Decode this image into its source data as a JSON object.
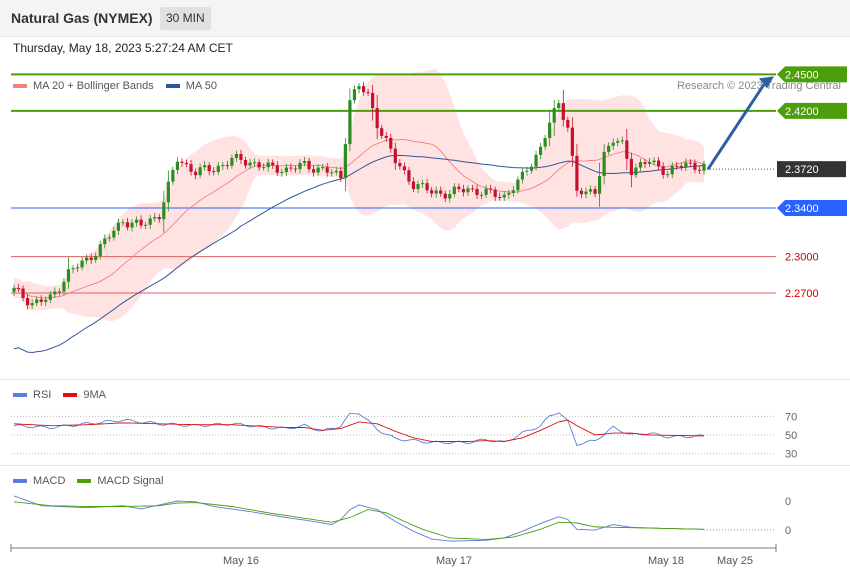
{
  "header": {
    "title": "Natural Gas (NYMEX)",
    "timeframe": "30 MIN"
  },
  "datetime": "Thursday, May 18, 2023 5:27:24 AM CET",
  "credit": "Research © 2023 Trading Central",
  "colors": {
    "bull": "#2e8b1f",
    "bear": "#c8102e",
    "bb_fill": "#ffd9d9",
    "ma20": "#f08080",
    "ma50": "#2f5597",
    "resistance": "#4d9e0b",
    "support_blue": "#2962ff",
    "support_red": "#e06060",
    "current": "#333333",
    "rsi": "#5b7fd6",
    "rsi_ma": "#e01010",
    "macd": "#5b7fd6",
    "macd_signal": "#4d9e0b",
    "arrow": "#2f5fa3"
  },
  "chart_data": [
    {
      "type": "candlestick",
      "title": "Natural Gas (NYMEX)",
      "legend": [
        {
          "name": "MA 20 + Bollinger Bands",
          "color": "#f08080"
        },
        {
          "name": "MA 50",
          "color": "#2f5597"
        }
      ],
      "ylim": [
        2.2,
        2.48
      ],
      "levels": [
        {
          "value": 2.45,
          "label": "2.4500",
          "kind": "resistance"
        },
        {
          "value": 2.42,
          "label": "2.4200",
          "kind": "resistance"
        },
        {
          "value": 2.372,
          "label": "2.3720",
          "kind": "current"
        },
        {
          "value": 2.34,
          "label": "2.3400",
          "kind": "support"
        },
        {
          "value": 2.3,
          "label": "2.3000",
          "kind": "support-minor"
        },
        {
          "value": 2.27,
          "label": "2.2700",
          "kind": "support-minor"
        }
      ],
      "forecast_arrow": {
        "from": 2.372,
        "to": 2.45
      },
      "x_ticks": [
        "May 16",
        "May 17",
        "May 18",
        "May 25"
      ],
      "anchors": [
        [
          0,
          2.272
        ],
        [
          4,
          2.262
        ],
        [
          8,
          2.265
        ],
        [
          12,
          2.287
        ],
        [
          16,
          2.297
        ],
        [
          20,
          2.312
        ],
        [
          24,
          2.33
        ],
        [
          28,
          2.325
        ],
        [
          32,
          2.335
        ],
        [
          36,
          2.38
        ],
        [
          40,
          2.37
        ],
        [
          44,
          2.372
        ],
        [
          48,
          2.38
        ],
        [
          52,
          2.378
        ],
        [
          56,
          2.373
        ],
        [
          60,
          2.372
        ],
        [
          64,
          2.375
        ],
        [
          68,
          2.372
        ],
        [
          72,
          2.365
        ],
        [
          74,
          2.43
        ],
        [
          76,
          2.44
        ],
        [
          78,
          2.432
        ],
        [
          80,
          2.41
        ],
        [
          82,
          2.395
        ],
        [
          84,
          2.378
        ],
        [
          88,
          2.36
        ],
        [
          92,
          2.353
        ],
        [
          96,
          2.352
        ],
        [
          100,
          2.356
        ],
        [
          104,
          2.352
        ],
        [
          108,
          2.35
        ],
        [
          112,
          2.365
        ],
        [
          116,
          2.39
        ],
        [
          118,
          2.41
        ],
        [
          120,
          2.425
        ],
        [
          122,
          2.408
        ],
        [
          124,
          2.355
        ],
        [
          126,
          2.35
        ],
        [
          128,
          2.355
        ],
        [
          130,
          2.385
        ],
        [
          132,
          2.395
        ],
        [
          134,
          2.392
        ],
        [
          136,
          2.372
        ],
        [
          140,
          2.378
        ],
        [
          144,
          2.37
        ],
        [
          148,
          2.376
        ],
        [
          152,
          2.374
        ]
      ]
    },
    {
      "type": "line",
      "title": "RSI",
      "series": [
        {
          "name": "RSI",
          "color": "#5b7fd6"
        },
        {
          "name": "9MA",
          "color": "#e01010"
        }
      ],
      "y_ticks": [
        70,
        50,
        30
      ],
      "rsi_anchors": [
        [
          0,
          60
        ],
        [
          8,
          58
        ],
        [
          16,
          62
        ],
        [
          24,
          66
        ],
        [
          32,
          62
        ],
        [
          40,
          60
        ],
        [
          48,
          62
        ],
        [
          56,
          58
        ],
        [
          60,
          57
        ],
        [
          64,
          60
        ],
        [
          68,
          54
        ],
        [
          72,
          60
        ],
        [
          74,
          72
        ],
        [
          76,
          74
        ],
        [
          80,
          56
        ],
        [
          84,
          46
        ],
        [
          88,
          44
        ],
        [
          92,
          42
        ],
        [
          100,
          42
        ],
        [
          104,
          45
        ],
        [
          108,
          42
        ],
        [
          112,
          52
        ],
        [
          116,
          60
        ],
        [
          118,
          70
        ],
        [
          120,
          75
        ],
        [
          122,
          64
        ],
        [
          124,
          40
        ],
        [
          128,
          44
        ],
        [
          132,
          58
        ],
        [
          136,
          50
        ],
        [
          140,
          52
        ],
        [
          144,
          48
        ],
        [
          152,
          49
        ]
      ],
      "ma_anchors": [
        [
          0,
          62
        ],
        [
          8,
          60
        ],
        [
          16,
          61
        ],
        [
          24,
          63
        ],
        [
          32,
          62
        ],
        [
          40,
          61
        ],
        [
          48,
          61
        ],
        [
          56,
          59
        ],
        [
          60,
          58
        ],
        [
          64,
          58
        ],
        [
          68,
          55
        ],
        [
          72,
          57
        ],
        [
          76,
          64
        ],
        [
          80,
          62
        ],
        [
          84,
          54
        ],
        [
          88,
          47
        ],
        [
          92,
          43
        ],
        [
          100,
          43
        ],
        [
          104,
          44
        ],
        [
          108,
          43
        ],
        [
          112,
          47
        ],
        [
          116,
          55
        ],
        [
          120,
          64
        ],
        [
          122,
          66
        ],
        [
          124,
          60
        ],
        [
          128,
          50
        ],
        [
          132,
          52
        ],
        [
          136,
          52
        ],
        [
          140,
          50
        ],
        [
          152,
          49
        ]
      ]
    },
    {
      "type": "line",
      "title": "MACD",
      "series": [
        {
          "name": "MACD",
          "color": "#5b7fd6"
        },
        {
          "name": "MACD Signal",
          "color": "#4d9e0b"
        }
      ],
      "y_ticks": [
        "0",
        "0"
      ],
      "macd_anchors": [
        [
          0,
          0.85
        ],
        [
          6,
          0.6
        ],
        [
          16,
          0.55
        ],
        [
          24,
          0.6
        ],
        [
          28,
          0.52
        ],
        [
          32,
          0.62
        ],
        [
          36,
          0.72
        ],
        [
          40,
          0.7
        ],
        [
          44,
          0.58
        ],
        [
          52,
          0.45
        ],
        [
          60,
          0.3
        ],
        [
          66,
          0.2
        ],
        [
          70,
          0.12
        ],
        [
          72,
          0.25
        ],
        [
          74,
          0.5
        ],
        [
          76,
          0.62
        ],
        [
          80,
          0.5
        ],
        [
          84,
          0.2
        ],
        [
          88,
          -0.05
        ],
        [
          92,
          -0.25
        ],
        [
          96,
          -0.3
        ],
        [
          104,
          -0.28
        ],
        [
          108,
          -0.22
        ],
        [
          112,
          -0.05
        ],
        [
          116,
          0.15
        ],
        [
          120,
          0.32
        ],
        [
          122,
          0.25
        ],
        [
          124,
          0.0
        ],
        [
          128,
          -0.02
        ],
        [
          132,
          0.12
        ],
        [
          136,
          0.05
        ],
        [
          144,
          0.02
        ],
        [
          152,
          0.0
        ]
      ],
      "signal_anchors": [
        [
          0,
          0.7
        ],
        [
          8,
          0.6
        ],
        [
          16,
          0.58
        ],
        [
          24,
          0.58
        ],
        [
          32,
          0.6
        ],
        [
          36,
          0.67
        ],
        [
          40,
          0.68
        ],
        [
          48,
          0.58
        ],
        [
          56,
          0.42
        ],
        [
          64,
          0.28
        ],
        [
          70,
          0.18
        ],
        [
          74,
          0.3
        ],
        [
          78,
          0.5
        ],
        [
          82,
          0.42
        ],
        [
          86,
          0.2
        ],
        [
          90,
          0.0
        ],
        [
          96,
          -0.22
        ],
        [
          104,
          -0.26
        ],
        [
          110,
          -0.2
        ],
        [
          116,
          0.0
        ],
        [
          120,
          0.18
        ],
        [
          124,
          0.16
        ],
        [
          128,
          0.06
        ],
        [
          132,
          0.05
        ],
        [
          140,
          0.03
        ],
        [
          152,
          0.0
        ]
      ]
    }
  ]
}
